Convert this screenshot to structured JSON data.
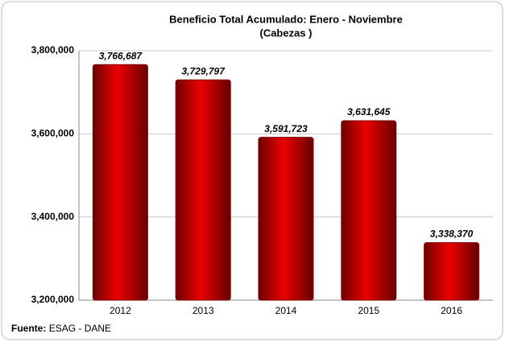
{
  "chart_data": {
    "type": "bar",
    "title": "Beneficio Total Acumulado: Enero - Noviembre",
    "subtitle": "(Cabezas )",
    "categories": [
      "2012",
      "2013",
      "2014",
      "2015",
      "2016"
    ],
    "values": [
      3766687,
      3729797,
      3591723,
      3631645,
      3338370
    ],
    "value_labels": [
      "3,766,687",
      "3,729,797",
      "3,591,723",
      "3,631,645",
      "3,338,370"
    ],
    "color": "#cc0000",
    "ylim": [
      3200000,
      3800000
    ],
    "yticks": [
      {
        "value": 3200000,
        "label": "3,200,000"
      },
      {
        "value": 3400000,
        "label": "3,400,000"
      },
      {
        "value": 3600000,
        "label": "3,600,000"
      },
      {
        "value": 3800000,
        "label": "3,800,000"
      }
    ],
    "grid": true,
    "source_label": "Fuente:",
    "source": "ESAG - DANE"
  }
}
